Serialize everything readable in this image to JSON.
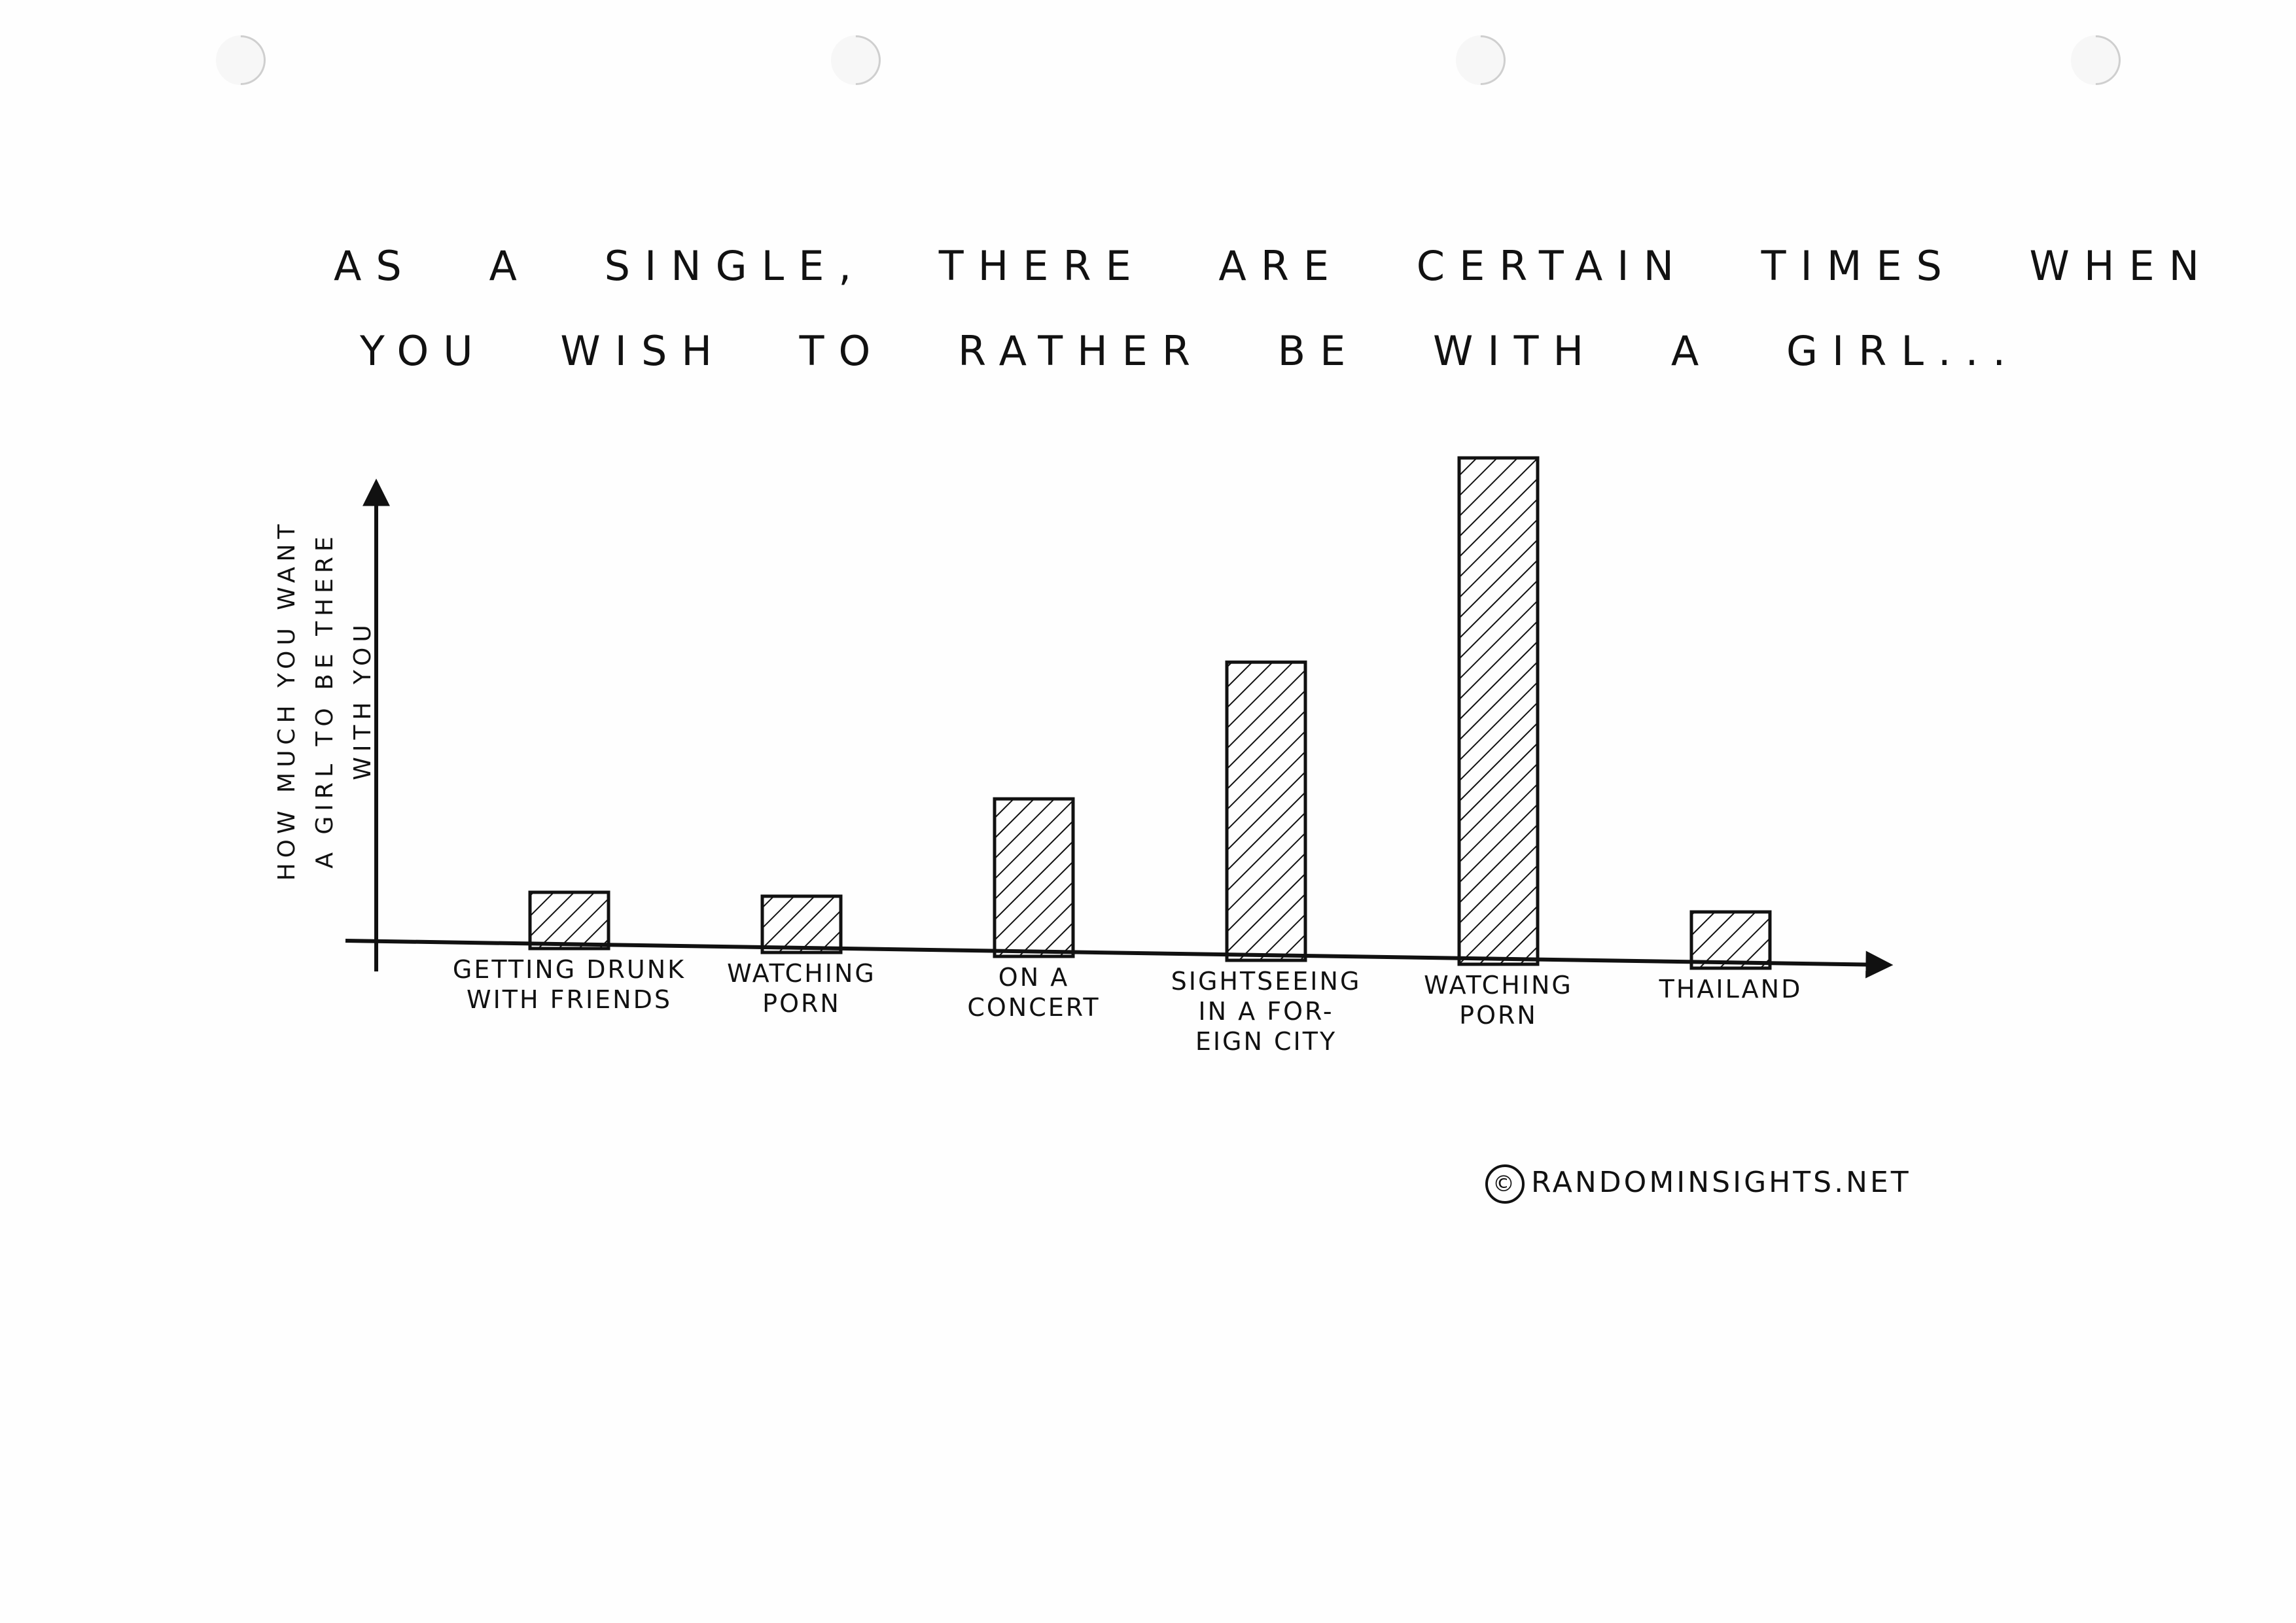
{
  "title": {
    "line1": "As a single, there are certain times when",
    "line2": "you wish to rather be with a girl..."
  },
  "credit": {
    "symbol": "©",
    "text": "RANDOMINSIGHTS.NET"
  },
  "chart_data": {
    "type": "bar",
    "ylabel_lines": [
      "HOW MUCH YOU WANT",
      "A GIRL TO BE THERE",
      "WITH YOU"
    ],
    "xlabel": "",
    "categories": [
      [
        "GETTING DRUNK",
        "WITH FRIENDS"
      ],
      [
        "WATCHING",
        "PORN"
      ],
      [
        "ON A",
        "CONCERT"
      ],
      [
        "SIGHTSEEING",
        "IN A FOR-",
        "EIGN CITY"
      ],
      [
        "WATCHING",
        "PORN"
      ],
      [
        "THAILAND"
      ]
    ],
    "values": [
      1.0,
      1.0,
      2.8,
      5.3,
      9.0,
      1.0
    ],
    "ylim": [
      0,
      10
    ],
    "grid": false,
    "legend": "none",
    "bar_style": "hatched",
    "colors": {
      "ink": "#111111",
      "paper": "#fefefe"
    }
  }
}
